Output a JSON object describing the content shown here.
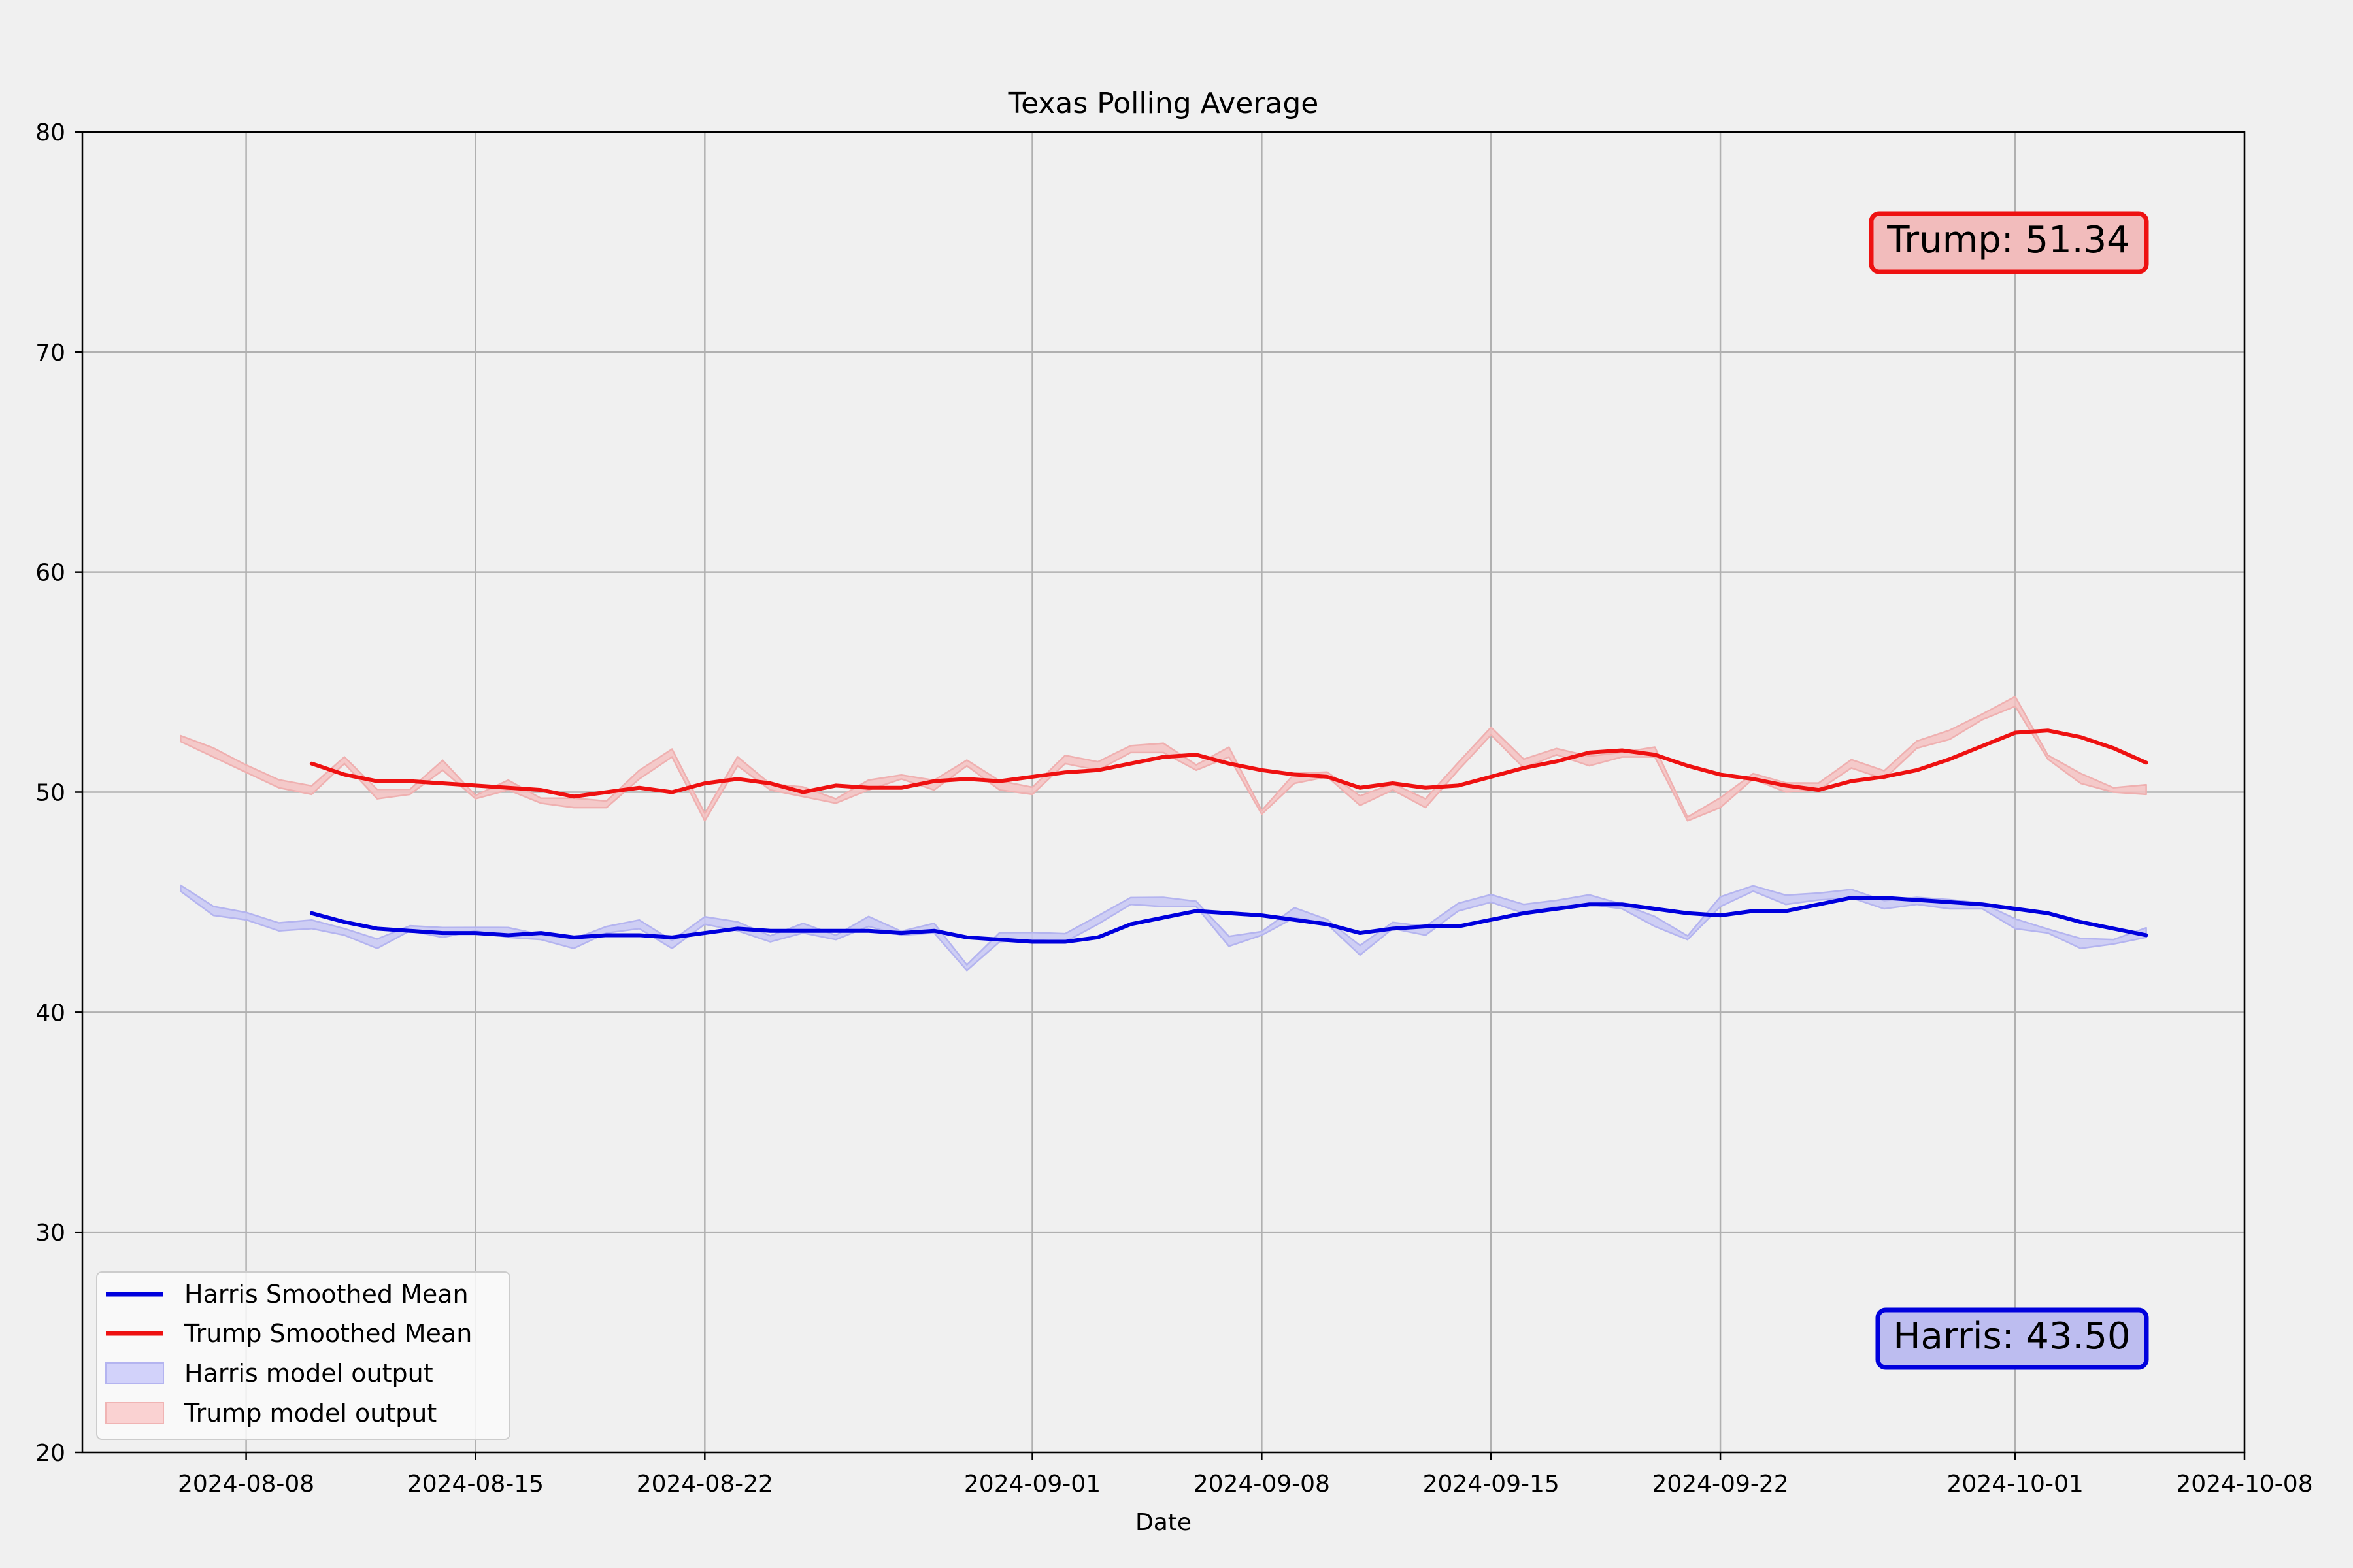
{
  "chart_data": {
    "type": "line",
    "title": "Texas Polling Average",
    "xlabel": "Date",
    "ylabel": "",
    "ylim": [
      20,
      80
    ],
    "xlim": [
      "2024-08-03",
      "2024-10-08"
    ],
    "yticks": [
      20,
      30,
      40,
      50,
      60,
      70,
      80
    ],
    "xticks": [
      "2024-08-08",
      "2024-08-15",
      "2024-08-22",
      "2024-09-01",
      "2024-09-08",
      "2024-09-15",
      "2024-09-22",
      "2024-10-01",
      "2024-10-08"
    ],
    "grid": true,
    "legend_position": "bottom-left",
    "legend": [
      "Harris Smoothed Mean",
      "Trump Smoothed Mean",
      "Harris model output",
      "Trump model output"
    ],
    "annotations": {
      "trump": "Trump: 51.34",
      "harris": "Harris: 43.50"
    },
    "colors": {
      "harris": "#0000dd",
      "trump": "#ee1111",
      "harris_band": "#c8c8f5",
      "trump_band": "#f5c2c2",
      "harris_box_fill": "#bdbdf0",
      "trump_box_fill": "#f2bcbc"
    },
    "start_date": "2024-08-06",
    "series": [
      {
        "name": "Harris Smoothed Mean",
        "start_index": 4,
        "values": [
          44.5,
          44.1,
          43.8,
          43.7,
          43.6,
          43.6,
          43.5,
          43.6,
          43.4,
          43.5,
          43.5,
          43.4,
          43.6,
          43.8,
          43.7,
          43.7,
          43.7,
          43.7,
          43.6,
          43.7,
          43.4,
          43.3,
          43.2,
          43.2,
          43.4,
          44.0,
          44.3,
          44.6,
          44.5,
          44.4,
          44.2,
          44.0,
          43.6,
          43.8,
          43.9,
          43.9,
          44.2,
          44.5,
          44.7,
          44.9,
          44.9,
          44.7,
          44.5,
          44.4,
          44.6,
          44.6,
          44.9,
          45.2,
          45.2,
          45.1,
          45.0,
          44.9,
          44.7,
          44.5,
          44.1,
          43.8,
          43.5
        ]
      },
      {
        "name": "Trump Smoothed Mean",
        "start_index": 4,
        "values": [
          51.3,
          50.8,
          50.5,
          50.5,
          50.4,
          50.3,
          50.2,
          50.1,
          49.8,
          50.0,
          50.2,
          50.0,
          50.4,
          50.6,
          50.4,
          50.0,
          50.3,
          50.2,
          50.2,
          50.5,
          50.6,
          50.5,
          50.7,
          50.9,
          51.0,
          51.3,
          51.6,
          51.7,
          51.3,
          51.0,
          50.8,
          50.7,
          50.2,
          50.4,
          50.2,
          50.3,
          50.7,
          51.1,
          51.4,
          51.8,
          51.9,
          51.7,
          51.2,
          50.8,
          50.6,
          50.3,
          50.1,
          50.5,
          50.7,
          51.0,
          51.5,
          52.1,
          52.7,
          52.8,
          52.5,
          52.0,
          51.34
        ]
      },
      {
        "name": "Harris model output",
        "start_index": 0,
        "lower": [
          45.5,
          44.4,
          44.2,
          43.7,
          43.8,
          43.5,
          42.9,
          43.7,
          43.4,
          43.7,
          43.4,
          43.3,
          42.9,
          43.6,
          43.8,
          42.9,
          44.0,
          43.7,
          43.2,
          43.6,
          43.3,
          43.9,
          43.5,
          43.6,
          41.9,
          43.2,
          43.3,
          43.2,
          44.0,
          44.9,
          44.8,
          44.8,
          43.0,
          43.5,
          44.3,
          44.0,
          42.6,
          43.8,
          43.5,
          44.6,
          45.0,
          44.5,
          44.8,
          44.9,
          44.7,
          43.9,
          43.3,
          44.8,
          45.5,
          44.9,
          45.1,
          45.2,
          44.7,
          44.9,
          44.7,
          44.7,
          43.8,
          43.6,
          42.9,
          43.1,
          43.4
        ]
      },
      {
        "name": "Trump model output",
        "start_index": 0,
        "lower": [
          52.3,
          51.6,
          50.9,
          50.2,
          49.9,
          51.3,
          49.7,
          49.9,
          51.0,
          49.7,
          50.1,
          49.5,
          49.3,
          49.3,
          50.6,
          51.6,
          48.7,
          51.2,
          50.1,
          49.8,
          49.5,
          50.1,
          50.6,
          50.1,
          51.2,
          50.1,
          49.9,
          51.3,
          51.0,
          51.8,
          51.8,
          51.0,
          51.6,
          49.0,
          50.4,
          50.7,
          49.4,
          50.1,
          49.3,
          51.0,
          52.6,
          51.1,
          51.7,
          51.2,
          51.6,
          51.6,
          48.7,
          49.3,
          50.6,
          50.0,
          50.1,
          51.1,
          50.6,
          52.0,
          52.4,
          53.3,
          53.9,
          51.5,
          50.4,
          50.0,
          49.9
        ]
      }
    ]
  }
}
